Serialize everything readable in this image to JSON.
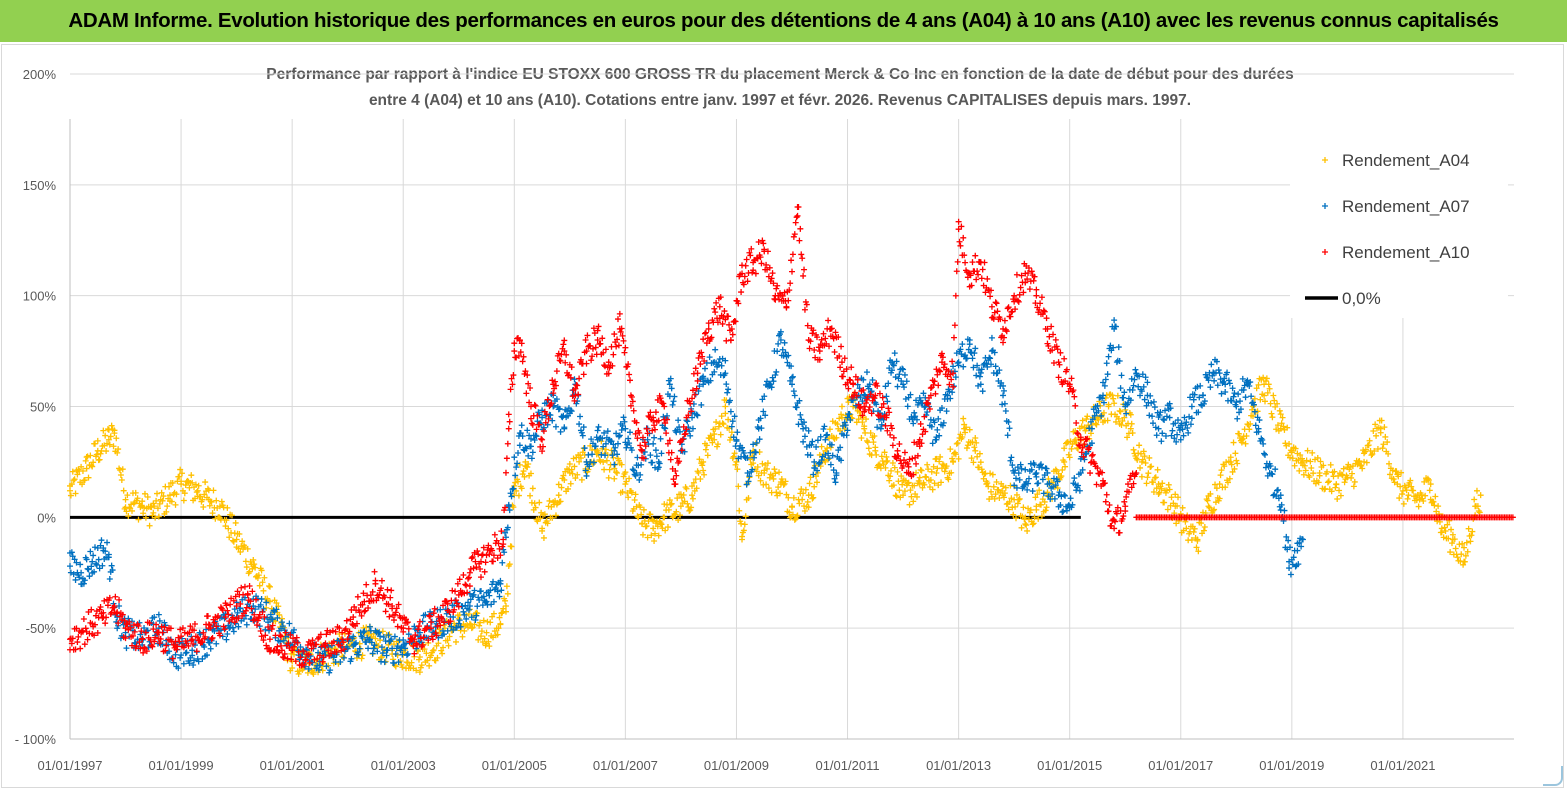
{
  "banner": {
    "title": "ADAM Informe. Evolution historique des performances en euros pour des détentions de 4 ans (A04) à 10 ans (A10) avec les revenus connus capitalisés"
  },
  "chart_data": {
    "type": "scatter",
    "title_lines": [
      "Performance par rapport à l'indice EU STOXX 600 GROSS TR  du placement Merck & Co Inc en fonction de la date de début pour des durées",
      "entre 4 (A04) et 10 ans (A10). Cotations entre janv. 1997 et févr. 2026. Revenus CAPITALISES depuis mars. 1997."
    ],
    "xlabel": "",
    "ylabel": "",
    "x_range": [
      1997.0,
      2023.0
    ],
    "ylim": [
      -100,
      200
    ],
    "y_ticks": [
      {
        "value": 200,
        "label": "200%"
      },
      {
        "value": 150,
        "label": "150%"
      },
      {
        "value": 100,
        "label": "100%"
      },
      {
        "value": 50,
        "label": "50%"
      },
      {
        "value": 0,
        "label": "0%"
      },
      {
        "value": -50,
        "label": "-50%"
      },
      {
        "value": -100,
        "label": "- 100%"
      }
    ],
    "x_ticks": [
      {
        "value": 1997,
        "label": "01/01/1997"
      },
      {
        "value": 1999,
        "label": "01/01/1999"
      },
      {
        "value": 2001,
        "label": "01/01/2001"
      },
      {
        "value": 2003,
        "label": "01/01/2003"
      },
      {
        "value": 2005,
        "label": "01/01/2005"
      },
      {
        "value": 2007,
        "label": "01/01/2007"
      },
      {
        "value": 2009,
        "label": "01/01/2009"
      },
      {
        "value": 2011,
        "label": "01/01/2011"
      },
      {
        "value": 2013,
        "label": "01/01/2013"
      },
      {
        "value": 2015,
        "label": "01/01/2015"
      },
      {
        "value": 2017,
        "label": "01/01/2017"
      },
      {
        "value": 2019,
        "label": "01/01/2019"
      },
      {
        "value": 2021,
        "label": "01/01/2021"
      }
    ],
    "legend_position": "top-right",
    "series": [
      {
        "name": "Rendement_A04",
        "color": "#ffc000",
        "marker": "plus",
        "x": [
          1997.0,
          1997.3,
          1997.5,
          1997.7,
          1997.8,
          1998.0,
          1998.3,
          1998.5,
          1998.8,
          1999.0,
          1999.3,
          1999.5,
          1999.7,
          2000.0,
          2000.3,
          2000.6,
          2000.8,
          2001.0,
          2001.3,
          2001.6,
          2002.0,
          2002.4,
          2002.8,
          2003.0,
          2003.3,
          2003.6,
          2003.9,
          2004.2,
          2004.5,
          2004.75,
          2004.85,
          2005.0,
          2005.2,
          2005.5,
          2005.8,
          2006.0,
          2006.3,
          2006.5,
          2006.8,
          2007.0,
          2007.3,
          2007.5,
          2007.7,
          2008.0,
          2008.2,
          2008.4,
          2008.6,
          2008.8,
          2009.0,
          2009.1,
          2009.3,
          2009.5,
          2009.8,
          2010.0,
          2010.3,
          2010.6,
          2010.9,
          2011.1,
          2011.3,
          2011.5,
          2011.7,
          2012.0,
          2012.3,
          2012.6,
          2012.9,
          2013.1,
          2013.3,
          2013.5,
          2013.8,
          2014.0,
          2014.2,
          2014.4,
          2014.6,
          2014.9,
          2015.1,
          2015.3,
          2015.5,
          2015.7,
          2015.9,
          2016.1,
          2016.3,
          2016.6,
          2016.9,
          2017.1,
          2017.3,
          2017.5,
          2017.7,
          2017.9,
          2018.1,
          2018.3,
          2018.5,
          2018.8,
          2019.0,
          2019.2,
          2019.5,
          2019.8,
          2020.0,
          2020.3,
          2020.6,
          2020.9,
          2021.1,
          2021.3,
          2021.5,
          2021.7,
          2021.9,
          2022.1,
          2022.3,
          2022.4
        ],
        "y": [
          12,
          22,
          30,
          35,
          38,
          8,
          5,
          2,
          10,
          15,
          12,
          8,
          5,
          -10,
          -22,
          -38,
          -50,
          -65,
          -66,
          -62,
          -58,
          -56,
          -60,
          -62,
          -63,
          -58,
          -50,
          -48,
          -52,
          -48,
          -40,
          10,
          25,
          -5,
          10,
          20,
          25,
          30,
          22,
          15,
          -3,
          -5,
          0,
          5,
          10,
          25,
          35,
          50,
          25,
          -10,
          30,
          20,
          15,
          5,
          10,
          30,
          45,
          50,
          40,
          30,
          25,
          10,
          15,
          20,
          25,
          40,
          30,
          15,
          10,
          8,
          -3,
          5,
          10,
          25,
          35,
          40,
          45,
          50,
          48,
          40,
          25,
          15,
          5,
          -5,
          -10,
          5,
          15,
          25,
          35,
          50,
          60,
          40,
          30,
          25,
          20,
          15,
          18,
          25,
          40,
          15,
          10,
          8,
          15,
          -5,
          -10,
          -20,
          5,
          10
        ]
      },
      {
        "name": "Rendement_A07",
        "color": "#0070c0",
        "marker": "plus",
        "x": [
          1997.0,
          1997.2,
          1997.4,
          1997.6,
          1997.7,
          1997.85,
          1998.0,
          1998.3,
          1998.6,
          1998.9,
          1999.2,
          1999.5,
          1999.8,
          2000.0,
          2000.3,
          2000.6,
          2000.9,
          2001.2,
          2001.5,
          2001.8,
          2002.1,
          2002.4,
          2002.7,
          2003.0,
          2003.3,
          2003.6,
          2003.9,
          2004.2,
          2004.5,
          2004.75,
          2004.9,
          2005.1,
          2005.3,
          2005.5,
          2005.7,
          2005.9,
          2006.1,
          2006.3,
          2006.5,
          2006.8,
          2007.0,
          2007.2,
          2007.4,
          2007.6,
          2007.8,
          2008.0,
          2008.2,
          2008.4,
          2008.6,
          2008.8,
          2009.0,
          2009.2,
          2009.4,
          2009.6,
          2009.8,
          2010.0,
          2010.2,
          2010.4,
          2010.6,
          2010.8,
          2011.0,
          2011.2,
          2011.4,
          2011.6,
          2011.8,
          2012.0,
          2012.2,
          2012.4,
          2012.6,
          2012.8,
          2013.0,
          2013.2,
          2013.4,
          2013.6,
          2013.8,
          2014.0,
          2014.2,
          2014.4,
          2014.6,
          2014.8,
          2015.0,
          2015.2,
          2015.4,
          2015.6,
          2015.8,
          2016.0,
          2016.2,
          2016.4,
          2016.6,
          2016.8,
          2017.0,
          2017.2,
          2017.4,
          2017.6,
          2017.8,
          2018.0,
          2018.2,
          2018.4,
          2018.6,
          2018.8,
          2018.95,
          2019.1,
          2019.2
        ],
        "y": [
          -22,
          -25,
          -20,
          -15,
          -18,
          -45,
          -52,
          -55,
          -50,
          -62,
          -60,
          -55,
          -50,
          -45,
          -40,
          -46,
          -52,
          -60,
          -65,
          -62,
          -58,
          -55,
          -60,
          -58,
          -52,
          -48,
          -45,
          -40,
          -38,
          -30,
          5,
          38,
          32,
          45,
          50,
          40,
          60,
          25,
          35,
          30,
          40,
          20,
          35,
          25,
          60,
          30,
          45,
          60,
          70,
          65,
          35,
          20,
          40,
          60,
          80,
          60,
          40,
          25,
          35,
          20,
          45,
          55,
          60,
          40,
          70,
          60,
          45,
          50,
          35,
          55,
          70,
          80,
          60,
          75,
          55,
          20,
          15,
          20,
          15,
          10,
          5,
          20,
          40,
          55,
          85,
          50,
          65,
          55,
          40,
          45,
          35,
          50,
          55,
          65,
          60,
          50,
          60,
          40,
          20,
          10,
          -20,
          -15,
          -10
        ]
      },
      {
        "name": "Rendement_A10",
        "color": "#ff0000",
        "marker": "plus",
        "x": [
          1997.0,
          1997.2,
          1997.4,
          1997.6,
          1997.8,
          1998.0,
          1998.3,
          1998.6,
          1998.9,
          1999.2,
          1999.5,
          1999.8,
          2000.0,
          2000.2,
          2000.4,
          2000.6,
          2000.8,
          2001.0,
          2001.3,
          2001.6,
          2001.9,
          2002.1,
          2002.3,
          2002.5,
          2002.8,
          2003.0,
          2003.2,
          2003.5,
          2003.8,
          2004.0,
          2004.2,
          2004.4,
          2004.6,
          2004.8,
          2004.9,
          2005.0,
          2005.1,
          2005.3,
          2005.5,
          2005.7,
          2005.9,
          2006.1,
          2006.3,
          2006.5,
          2006.7,
          2006.9,
          2007.1,
          2007.3,
          2007.5,
          2007.7,
          2007.9,
          2008.1,
          2008.3,
          2008.5,
          2008.7,
          2008.9,
          2009.1,
          2009.3,
          2009.5,
          2009.7,
          2009.9,
          2010.1,
          2010.3,
          2010.5,
          2010.7,
          2010.9,
          2011.1,
          2011.3,
          2011.5,
          2011.7,
          2011.9,
          2012.1,
          2012.3,
          2012.5,
          2012.7,
          2012.9,
          2013.0,
          2013.2,
          2013.4,
          2013.6,
          2013.8,
          2014.0,
          2014.2,
          2014.4,
          2014.6,
          2014.8,
          2015.0,
          2015.2,
          2015.4,
          2015.6,
          2015.8,
          2016.0,
          2016.2
        ],
        "y": [
          -55,
          -52,
          -48,
          -45,
          -40,
          -50,
          -55,
          -52,
          -58,
          -55,
          -50,
          -45,
          -40,
          -35,
          -45,
          -55,
          -58,
          -60,
          -62,
          -58,
          -55,
          -45,
          -38,
          -30,
          -40,
          -50,
          -55,
          -50,
          -42,
          -35,
          -25,
          -20,
          -15,
          -10,
          40,
          75,
          80,
          50,
          35,
          60,
          75,
          55,
          75,
          80,
          70,
          85,
          55,
          30,
          45,
          50,
          15,
          45,
          65,
          85,
          95,
          80,
          110,
          115,
          120,
          100,
          95,
          140,
          80,
          75,
          85,
          70,
          60,
          50,
          55,
          45,
          30,
          20,
          35,
          55,
          70,
          65,
          130,
          110,
          115,
          95,
          85,
          100,
          110,
          100,
          85,
          70,
          60,
          35,
          25,
          15,
          -5,
          5,
          20
        ]
      },
      {
        "name": "0,0%",
        "color": "#000000",
        "marker": "line",
        "x": [
          1997.0,
          2015.2
        ],
        "y": [
          0,
          0
        ]
      }
    ],
    "red_flat_segment": {
      "x": [
        2016.2,
        2023.0
      ],
      "y": [
        0,
        0
      ]
    },
    "legend": [
      {
        "label": "Rendement_A04",
        "color": "#ffc000",
        "marker": "plus"
      },
      {
        "label": "Rendement_A07",
        "color": "#0070c0",
        "marker": "plus"
      },
      {
        "label": "Rendement_A10",
        "color": "#ff0000",
        "marker": "plus"
      },
      {
        "label": "0,0%",
        "color": "#000000",
        "marker": "line"
      }
    ]
  }
}
